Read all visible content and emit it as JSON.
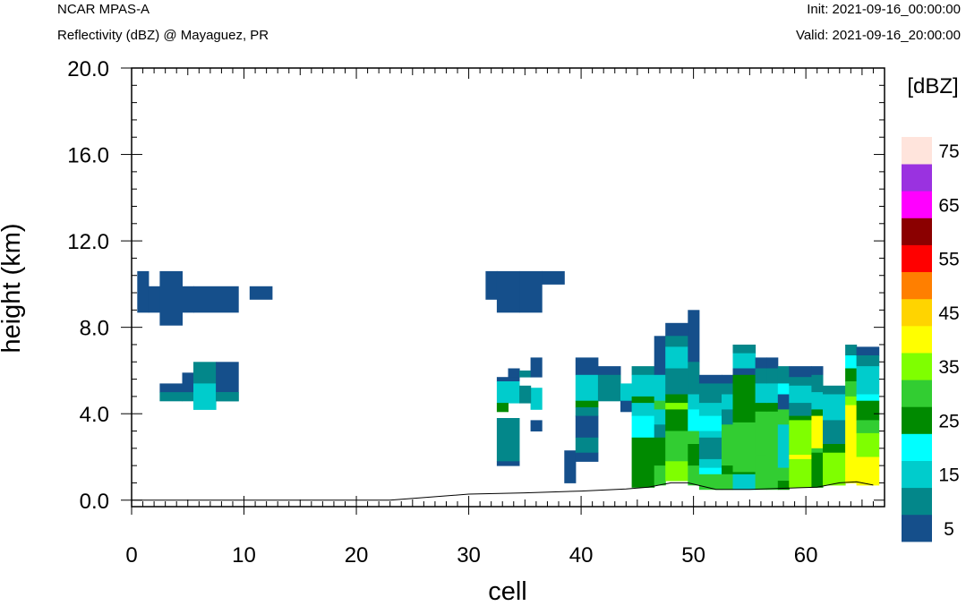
{
  "header": {
    "left_title": "NCAR MPAS-A",
    "left_subtitle": "Reflectivity (dBZ) @ Mayaguez, PR",
    "init_label": "Init: 2021-09-16_00:00:00",
    "valid_label": "Valid: 2021-09-16_20:00:00"
  },
  "chart_data": {
    "type": "heatmap",
    "title": "Reflectivity (dBZ) @ Mayaguez, PR",
    "xlabel": "cell",
    "ylabel": "height (km)",
    "xlim": [
      0,
      67
    ],
    "ylim": [
      -0.3,
      20.0
    ],
    "x_ticks": [
      0,
      10,
      20,
      30,
      40,
      50,
      60
    ],
    "x_tick_labels": [
      "0",
      "10",
      "20",
      "30",
      "40",
      "50",
      "60"
    ],
    "y_ticks": [
      0,
      4,
      8,
      12,
      16,
      20
    ],
    "y_tick_labels": [
      "0.0",
      "4.0",
      "8.0",
      "12.0",
      "16.0",
      "20.0"
    ],
    "colorbar": {
      "title": "[dBZ]",
      "colors": [
        "#154f8b",
        "#03878a",
        "#00cccc",
        "#00ffff",
        "#008a00",
        "#32cd32",
        "#7fff00",
        "#ffff00",
        "#ffd400",
        "#ff7f00",
        "#ff0000",
        "#8b0000",
        "#ff00ff",
        "#9a32e0",
        "#ffe4dc"
      ],
      "labels": [
        "5",
        "15",
        "25",
        "35",
        "45",
        "55",
        "65",
        "75"
      ]
    },
    "terrain": [
      [
        0,
        0
      ],
      [
        23,
        0
      ],
      [
        30,
        0.28
      ],
      [
        35,
        0.34
      ],
      [
        40,
        0.42
      ],
      [
        44,
        0.52
      ],
      [
        46,
        0.6
      ],
      [
        48,
        0.8
      ],
      [
        49.5,
        0.8
      ],
      [
        52,
        0.5
      ],
      [
        55,
        0.5
      ],
      [
        58,
        0.55
      ],
      [
        61,
        0.6
      ],
      [
        63,
        0.8
      ],
      [
        64.5,
        0.85
      ],
      [
        66,
        0.7
      ]
    ],
    "cells": [
      [
        0.5,
        1.5,
        8.7,
        10.6,
        0
      ],
      [
        1.5,
        2.5,
        8.7,
        9.9,
        0
      ],
      [
        2.5,
        4.5,
        8.1,
        10.6,
        0
      ],
      [
        4.5,
        5.5,
        8.7,
        9.9,
        0
      ],
      [
        5.5,
        9.5,
        8.7,
        9.9,
        0
      ],
      [
        10.5,
        12.5,
        9.3,
        9.9,
        0
      ],
      [
        2.5,
        4.5,
        5.0,
        5.4,
        0
      ],
      [
        2.5,
        4.5,
        4.6,
        5.0,
        1
      ],
      [
        4.5,
        5.5,
        5.0,
        5.9,
        0
      ],
      [
        4.5,
        5.5,
        4.6,
        5.0,
        1
      ],
      [
        5.5,
        7.5,
        5.4,
        6.4,
        1
      ],
      [
        5.5,
        7.5,
        4.6,
        5.4,
        2
      ],
      [
        5.5,
        7.5,
        4.2,
        4.6,
        2
      ],
      [
        7.5,
        9.5,
        5.0,
        6.4,
        0
      ],
      [
        7.5,
        9.5,
        4.6,
        5.0,
        1
      ],
      [
        7.5,
        9.5,
        4.6,
        5.0,
        1
      ],
      [
        31.5,
        32.5,
        9.3,
        10.6,
        0
      ],
      [
        32.5,
        34.5,
        8.7,
        10.6,
        0
      ],
      [
        34.5,
        36.5,
        8.7,
        10.6,
        0
      ],
      [
        36.5,
        38.5,
        10.0,
        10.6,
        0
      ],
      [
        32.5,
        34.5,
        5.5,
        5.7,
        0
      ],
      [
        32.5,
        34.5,
        4.5,
        5.5,
        2
      ],
      [
        32.5,
        33.5,
        4.1,
        4.5,
        4
      ],
      [
        32.5,
        34.5,
        1.8,
        3.8,
        1
      ],
      [
        32.5,
        34.5,
        1.6,
        1.8,
        0
      ],
      [
        33.5,
        34.5,
        5.7,
        6.1,
        0
      ],
      [
        34.5,
        35.5,
        5.7,
        6.0,
        1
      ],
      [
        35.5,
        36.5,
        5.7,
        6.6,
        0
      ],
      [
        35.5,
        36.5,
        4.2,
        5.2,
        2
      ],
      [
        35.5,
        36.5,
        3.2,
        3.7,
        0
      ],
      [
        34.5,
        35.5,
        4.5,
        5.3,
        1
      ],
      [
        38.5,
        39.5,
        0.8,
        2.3,
        0
      ],
      [
        39.5,
        41.5,
        5.8,
        6.6,
        0
      ],
      [
        39.5,
        41.5,
        4.6,
        5.8,
        2
      ],
      [
        39.5,
        41.5,
        4.3,
        4.6,
        4
      ],
      [
        39.5,
        41.5,
        3.9,
        4.3,
        1
      ],
      [
        39.5,
        41.5,
        2.9,
        3.9,
        0
      ],
      [
        39.5,
        41.5,
        2.2,
        2.9,
        1
      ],
      [
        39.5,
        41.5,
        1.8,
        2.2,
        0
      ],
      [
        41.5,
        43.5,
        5.8,
        6.2,
        0
      ],
      [
        41.5,
        43.5,
        4.6,
        5.8,
        1
      ],
      [
        43.5,
        44.5,
        4.6,
        5.4,
        2
      ],
      [
        43.5,
        44.5,
        4.1,
        4.6,
        0
      ],
      [
        44.5,
        46.5,
        5.8,
        6.2,
        1
      ],
      [
        44.5,
        46.5,
        4.8,
        5.8,
        2
      ],
      [
        44.5,
        46.5,
        4.5,
        4.8,
        4
      ],
      [
        44.5,
        46.5,
        3.9,
        4.5,
        2
      ],
      [
        44.5,
        46.5,
        2.9,
        3.9,
        3
      ],
      [
        44.5,
        46.5,
        0.6,
        2.9,
        4
      ],
      [
        46.5,
        47.5,
        5.8,
        7.6,
        0
      ],
      [
        46.5,
        47.5,
        4.6,
        5.8,
        2
      ],
      [
        46.5,
        47.5,
        4.2,
        4.6,
        5
      ],
      [
        46.5,
        47.5,
        3.5,
        4.2,
        2
      ],
      [
        46.5,
        47.5,
        2.9,
        3.5,
        1
      ],
      [
        46.5,
        47.5,
        1.6,
        2.9,
        4
      ],
      [
        46.5,
        47.5,
        0.7,
        1.6,
        5
      ],
      [
        47.5,
        49.5,
        7.6,
        8.2,
        0
      ],
      [
        47.5,
        49.5,
        7.1,
        7.6,
        1
      ],
      [
        47.5,
        49.5,
        6.1,
        7.1,
        2
      ],
      [
        47.5,
        49.5,
        4.9,
        6.1,
        1
      ],
      [
        47.5,
        49.5,
        4.5,
        4.9,
        4
      ],
      [
        47.5,
        49.5,
        4.2,
        4.5,
        6
      ],
      [
        47.5,
        49.5,
        3.2,
        4.2,
        4
      ],
      [
        47.5,
        49.5,
        1.8,
        3.2,
        5
      ],
      [
        47.5,
        49.5,
        0.9,
        1.8,
        6
      ],
      [
        49.5,
        50.5,
        6.4,
        8.8,
        0
      ],
      [
        49.5,
        50.5,
        4.9,
        6.4,
        1
      ],
      [
        49.5,
        50.5,
        4.2,
        4.9,
        2
      ],
      [
        49.5,
        50.5,
        3.2,
        4.2,
        3
      ],
      [
        49.5,
        50.5,
        2.6,
        3.2,
        5
      ],
      [
        49.5,
        50.5,
        1.6,
        2.6,
        4
      ],
      [
        49.5,
        50.5,
        0.7,
        1.6,
        5
      ],
      [
        50.5,
        52.5,
        5.4,
        5.8,
        0
      ],
      [
        50.5,
        52.5,
        4.5,
        5.4,
        1
      ],
      [
        50.5,
        52.5,
        3.9,
        4.5,
        2
      ],
      [
        50.5,
        52.5,
        3.2,
        3.9,
        3
      ],
      [
        50.5,
        52.5,
        2.9,
        3.2,
        2
      ],
      [
        50.5,
        52.5,
        1.9,
        2.9,
        1
      ],
      [
        50.5,
        52.5,
        1.5,
        1.9,
        2
      ],
      [
        50.5,
        52.5,
        1.2,
        1.5,
        3
      ],
      [
        50.5,
        52.5,
        0.5,
        1.2,
        5
      ],
      [
        52.5,
        53.5,
        5.4,
        5.8,
        0
      ],
      [
        52.5,
        53.5,
        4.9,
        5.4,
        1
      ],
      [
        52.5,
        53.5,
        4.2,
        4.9,
        2
      ],
      [
        52.5,
        53.5,
        3.5,
        4.2,
        1
      ],
      [
        52.5,
        53.5,
        1.6,
        3.5,
        5
      ],
      [
        52.5,
        53.5,
        1.2,
        1.6,
        4
      ],
      [
        52.5,
        53.5,
        0.5,
        1.2,
        5
      ],
      [
        53.5,
        55.5,
        6.8,
        7.2,
        1
      ],
      [
        53.5,
        55.5,
        6.1,
        6.8,
        2
      ],
      [
        53.5,
        55.5,
        5.8,
        6.1,
        0
      ],
      [
        53.5,
        55.5,
        3.6,
        5.8,
        4
      ],
      [
        53.5,
        55.5,
        1.3,
        3.6,
        5
      ],
      [
        53.5,
        55.5,
        1.2,
        1.3,
        4
      ],
      [
        53.5,
        55.5,
        0.5,
        1.2,
        2
      ],
      [
        55.5,
        56.5,
        6.1,
        6.6,
        0
      ],
      [
        55.5,
        56.5,
        5.4,
        6.1,
        1
      ],
      [
        55.5,
        56.5,
        4.5,
        5.4,
        2
      ],
      [
        55.5,
        56.5,
        4.1,
        4.5,
        4
      ],
      [
        55.5,
        56.5,
        2.1,
        4.1,
        5
      ],
      [
        55.5,
        56.5,
        0.5,
        2.1,
        5
      ],
      [
        56.5,
        57.5,
        6.1,
        6.6,
        0
      ],
      [
        56.5,
        57.5,
        5.4,
        6.1,
        1
      ],
      [
        56.5,
        57.5,
        4.5,
        5.4,
        2
      ],
      [
        56.5,
        57.5,
        4.1,
        4.5,
        4
      ],
      [
        56.5,
        57.5,
        0.5,
        4.1,
        5
      ],
      [
        57.5,
        58.5,
        5.4,
        6.2,
        1
      ],
      [
        57.5,
        58.5,
        4.9,
        5.4,
        3
      ],
      [
        57.5,
        58.5,
        4.2,
        4.9,
        0
      ],
      [
        57.5,
        58.5,
        3.5,
        4.2,
        5
      ],
      [
        57.5,
        58.5,
        1.5,
        3.5,
        2
      ],
      [
        57.5,
        58.5,
        0.9,
        1.5,
        5
      ],
      [
        57.5,
        58.5,
        0.5,
        0.9,
        4
      ],
      [
        58.5,
        60.5,
        5.7,
        6.2,
        0
      ],
      [
        58.5,
        60.5,
        5.3,
        5.7,
        1
      ],
      [
        58.5,
        60.5,
        4.5,
        5.3,
        2
      ],
      [
        58.5,
        60.5,
        3.9,
        4.5,
        1
      ],
      [
        58.5,
        60.5,
        3.7,
        3.9,
        4
      ],
      [
        58.5,
        60.5,
        2.1,
        3.7,
        6
      ],
      [
        58.5,
        60.5,
        1.9,
        2.1,
        7
      ],
      [
        58.5,
        60.5,
        0.6,
        1.9,
        6
      ],
      [
        60.5,
        61.5,
        5.8,
        6.2,
        0
      ],
      [
        60.5,
        61.5,
        5.0,
        5.8,
        1
      ],
      [
        60.5,
        61.5,
        4.2,
        5.0,
        2
      ],
      [
        60.5,
        61.5,
        3.9,
        4.2,
        4
      ],
      [
        60.5,
        61.5,
        2.4,
        3.9,
        7
      ],
      [
        60.5,
        61.5,
        2.2,
        2.4,
        5
      ],
      [
        60.5,
        61.5,
        0.6,
        2.2,
        4
      ],
      [
        61.5,
        63.5,
        4.9,
        5.3,
        1
      ],
      [
        61.5,
        63.5,
        3.7,
        4.9,
        2
      ],
      [
        61.5,
        63.5,
        2.6,
        3.7,
        1
      ],
      [
        61.5,
        63.5,
        2.2,
        2.6,
        4
      ],
      [
        61.5,
        63.5,
        0.7,
        2.2,
        6
      ],
      [
        63.5,
        64.5,
        6.7,
        7.2,
        1
      ],
      [
        63.5,
        64.5,
        6.1,
        6.7,
        3
      ],
      [
        63.5,
        64.5,
        5.5,
        6.1,
        4
      ],
      [
        63.5,
        64.5,
        4.8,
        5.5,
        5
      ],
      [
        63.5,
        64.5,
        4.4,
        4.8,
        6
      ],
      [
        63.5,
        64.5,
        0.8,
        4.4,
        7
      ],
      [
        64.5,
        66.5,
        6.7,
        7.1,
        0
      ],
      [
        64.5,
        66.5,
        6.2,
        6.7,
        1
      ],
      [
        64.5,
        66.5,
        4.9,
        6.2,
        2
      ],
      [
        64.5,
        66.5,
        4.6,
        4.9,
        3
      ],
      [
        64.5,
        66.5,
        3.7,
        4.6,
        4
      ],
      [
        64.5,
        66.5,
        3.1,
        3.7,
        5
      ],
      [
        64.5,
        66.5,
        2.0,
        3.1,
        6
      ],
      [
        64.5,
        66.5,
        0.7,
        2.0,
        7
      ]
    ]
  }
}
